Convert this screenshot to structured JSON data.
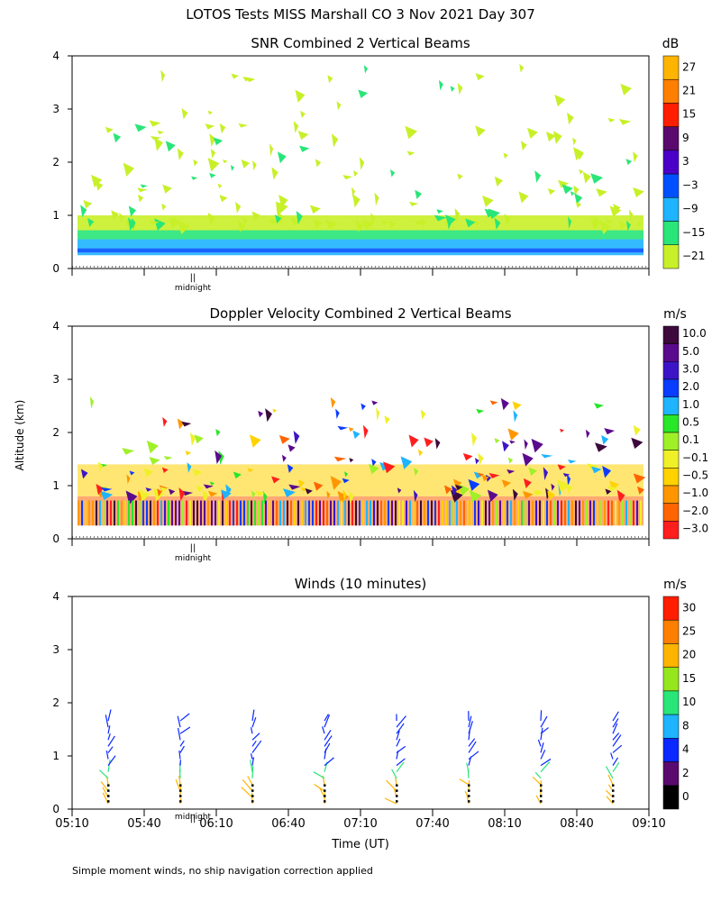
{
  "page": {
    "title": "LOTOS Tests MISS Marshall CO   3 Nov 2021 Day 307",
    "ylabel": "Altitude (km)",
    "xlabel": "Time (UT)",
    "footnote": "Simple moment winds, no ship navigation correction applied",
    "midnight_marker": "||",
    "midnight_label": "midnight"
  },
  "chart_data": [
    {
      "type": "heatmap",
      "title": "SNR Combined 2 Vertical Beams",
      "ylim": [
        0,
        4
      ],
      "yticks": [
        "0",
        "1",
        "2",
        "3",
        "4"
      ],
      "colorbar_unit": "dB",
      "colorbar_labels": [
        "27",
        "21",
        "15",
        "9",
        "3",
        "−3",
        "−9",
        "−15",
        "−21"
      ],
      "colorbar_colors": [
        "#ffb400",
        "#ff7f00",
        "#ff1e00",
        "#5a0a6e",
        "#4b00c8",
        "#0050ff",
        "#1eb4ff",
        "#28e678",
        "#c8f028"
      ],
      "layers": [
        {
          "bottom": 0.25,
          "top": 0.3,
          "color": "#1eb4ff"
        },
        {
          "bottom": 0.3,
          "top": 0.38,
          "color": "#0050ff"
        },
        {
          "bottom": 0.38,
          "top": 0.55,
          "color": "#1eb4ff"
        },
        {
          "bottom": 0.55,
          "top": 0.72,
          "color": "#28e678"
        },
        {
          "bottom": 0.72,
          "top": 1.0,
          "color": "#c8f028"
        }
      ]
    },
    {
      "type": "heatmap",
      "title": "Doppler Velocity Combined 2 Vertical Beams",
      "ylim": [
        0,
        4
      ],
      "yticks": [
        "0",
        "1",
        "2",
        "3",
        "4"
      ],
      "colorbar_unit": "m/s",
      "colorbar_labels": [
        "10.0",
        "5.0",
        "3.0",
        "2.0",
        "1.0",
        "0.5",
        "0.1",
        "−0.1",
        "−0.5",
        "−1.0",
        "−2.0",
        "−3.0"
      ],
      "colorbar_colors": [
        "#3c0a3c",
        "#5a0a8c",
        "#3c14c8",
        "#0a3cff",
        "#1eb4ff",
        "#28e628",
        "#a0f028",
        "#f0f028",
        "#ffd200",
        "#ff9600",
        "#ff6400",
        "#ff1e1e"
      ],
      "layers": [
        {
          "bottom": 0.25,
          "top": 0.8,
          "color": "#ff6400"
        },
        {
          "bottom": 0.8,
          "top": 1.4,
          "color": "#ffd200"
        }
      ]
    },
    {
      "type": "scatter",
      "title": "Winds (10 minutes)",
      "ylim": [
        0,
        4
      ],
      "yticks": [
        "0",
        "1",
        "2",
        "3",
        "4"
      ],
      "xticks": [
        "05:10",
        "05:40",
        "06:10",
        "06:40",
        "07:10",
        "07:40",
        "08:10",
        "08:40",
        "09:10"
      ],
      "colorbar_unit": "m/s",
      "colorbar_labels": [
        "30",
        "25",
        "20",
        "15",
        "10",
        "8",
        "4",
        "2",
        "0"
      ],
      "colorbar_colors": [
        "#ff1e00",
        "#ff7f00",
        "#ffb400",
        "#96e61e",
        "#28e678",
        "#1eb4ff",
        "#0a28ff",
        "#5a0a6e",
        "#000000"
      ],
      "profile_times": [
        "05:25",
        "05:55",
        "06:25",
        "06:55",
        "07:25",
        "07:55",
        "08:25",
        "08:55"
      ]
    }
  ]
}
